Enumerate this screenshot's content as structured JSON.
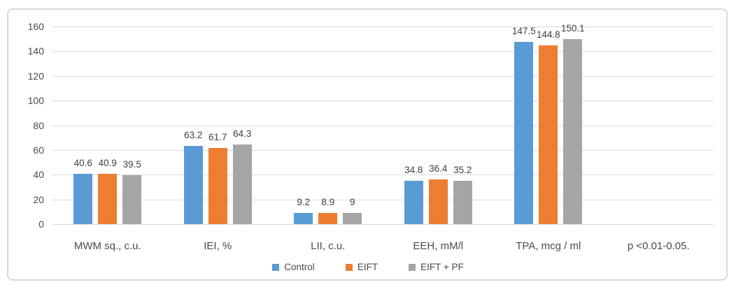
{
  "chart_data": {
    "type": "bar",
    "title": "",
    "categories": [
      "MWM sq., c.u.",
      "IEI, %",
      "LII, c.u.",
      "EEH, mM/l",
      "TPA, mcg / ml",
      "p <0.01-0.05."
    ],
    "series": [
      {
        "name": "Control",
        "color": "#5B9BD5",
        "values": [
          40.6,
          63.2,
          9.2,
          34.8,
          147.5,
          null
        ]
      },
      {
        "name": "EIFT",
        "color": "#ED7D31",
        "values": [
          40.9,
          61.7,
          8.9,
          36.4,
          144.8,
          null
        ]
      },
      {
        "name": "EIFT + PF",
        "color": "#A5A5A5",
        "values": [
          39.5,
          64.3,
          9,
          35.2,
          150.1,
          null
        ]
      }
    ],
    "xlabel": "",
    "ylabel": "",
    "y_axis": {
      "min": 0,
      "max": 160,
      "step": 20,
      "tick_labels": [
        "0",
        "20",
        "40",
        "60",
        "80",
        "100",
        "120",
        "140",
        "160"
      ]
    },
    "grid": true,
    "gridline_color": "#D9D9D9",
    "data_labels": true,
    "legend_position": "bottom"
  }
}
